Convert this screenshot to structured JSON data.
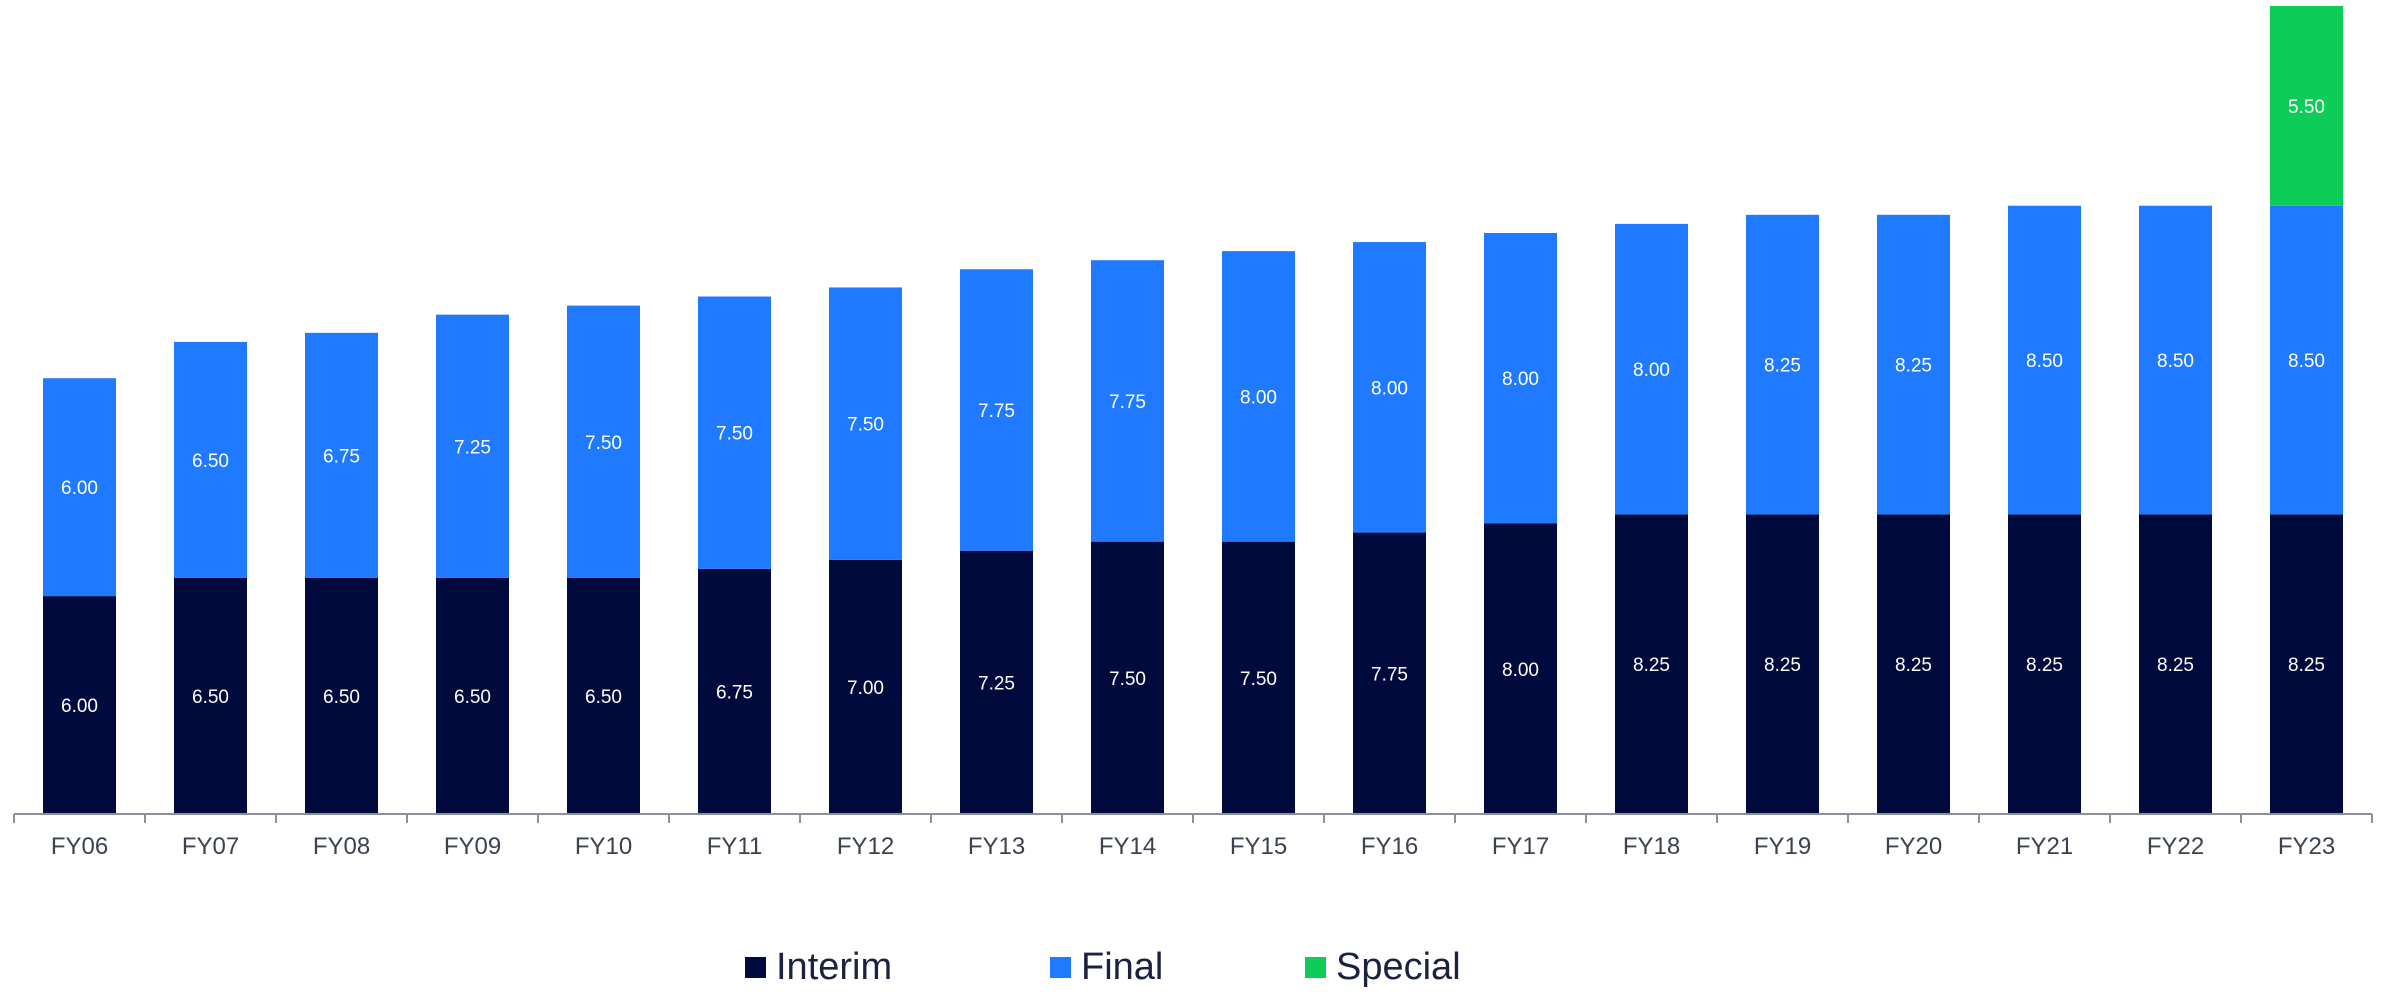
{
  "chart_data": {
    "type": "bar",
    "stacked": true,
    "categories": [
      "FY06",
      "FY07",
      "FY08",
      "FY09",
      "FY10",
      "FY11",
      "FY12",
      "FY13",
      "FY14",
      "FY15",
      "FY16",
      "FY17",
      "FY18",
      "FY19",
      "FY20",
      "FY21",
      "FY22",
      "FY23"
    ],
    "series": [
      {
        "name": "Interim",
        "color": "#000a3d",
        "values": [
          6.0,
          6.5,
          6.5,
          6.5,
          6.5,
          6.75,
          7.0,
          7.25,
          7.5,
          7.5,
          7.75,
          8.0,
          8.25,
          8.25,
          8.25,
          8.25,
          8.25,
          8.25
        ]
      },
      {
        "name": "Final",
        "color": "#1f7aff",
        "values": [
          6.0,
          6.5,
          6.75,
          7.25,
          7.5,
          7.5,
          7.5,
          7.75,
          7.75,
          8.0,
          8.0,
          8.0,
          8.0,
          8.25,
          8.25,
          8.5,
          8.5,
          8.5
        ]
      },
      {
        "name": "Special",
        "color": "#0ecc58",
        "values": [
          null,
          null,
          null,
          null,
          null,
          null,
          null,
          null,
          null,
          null,
          null,
          null,
          null,
          null,
          null,
          null,
          null,
          5.5
        ]
      }
    ],
    "data_labels": true,
    "label_format": "0.00",
    "title": "",
    "xlabel": "",
    "ylabel": "",
    "ylim": [
      0,
      22.25
    ],
    "grid": false,
    "legend_position": "bottom-center"
  }
}
